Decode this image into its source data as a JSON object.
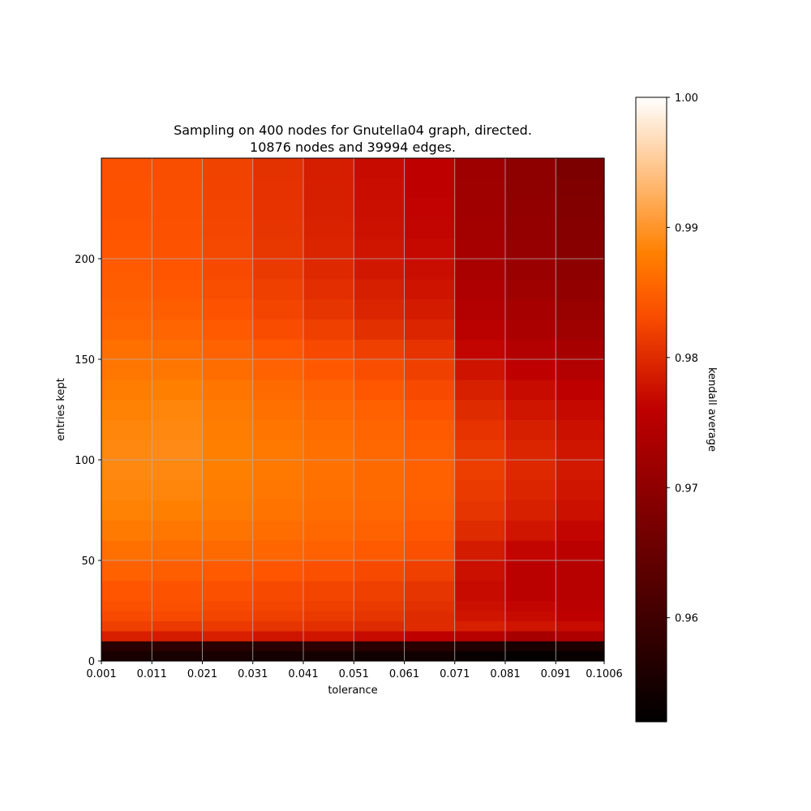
{
  "chart_data": {
    "type": "heatmap",
    "title_lines": [
      "Sampling on 400 nodes for Gnutella04 graph, directed.",
      "10876 nodes and 39994 edges."
    ],
    "xlabel": "tolerance",
    "ylabel": "entries kept",
    "xlim": [
      0.001,
      0.1006
    ],
    "ylim": [
      0,
      250
    ],
    "x_ticks": [
      0.001,
      0.011,
      0.021,
      0.031,
      0.041,
      0.051,
      0.061,
      0.071,
      0.081,
      0.091,
      0.1006
    ],
    "x_tick_labels": [
      "0.001",
      "0.011",
      "0.021",
      "0.031",
      "0.041",
      "0.051",
      "0.061",
      "0.071",
      "0.081",
      "0.091",
      "0.1006"
    ],
    "y_ticks": [
      0,
      50,
      100,
      150,
      200
    ],
    "y_tick_labels": [
      "0",
      "50",
      "100",
      "150",
      "200"
    ],
    "grid": true,
    "colormap": "gist_heat",
    "colorbar": {
      "label": "kendall average",
      "range": [
        0.952,
        1.0
      ],
      "ticks": [
        0.96,
        0.97,
        0.98,
        0.99,
        1.0
      ],
      "tick_labels": [
        "0.96",
        "0.97",
        "0.98",
        "0.99",
        "1.00"
      ]
    },
    "x_cells": [
      0.001,
      0.011,
      0.021,
      0.031,
      0.041,
      0.051,
      0.061,
      0.071,
      0.081,
      0.091
    ],
    "y_cells": [
      0,
      5,
      10,
      15,
      20,
      25,
      30,
      40,
      50,
      60,
      70,
      80,
      90,
      100,
      110,
      120,
      130,
      140,
      150,
      160,
      170,
      180,
      190,
      200,
      210,
      220,
      230,
      240
    ],
    "cell_height": [
      5,
      5,
      5,
      5,
      5,
      5,
      10,
      10,
      10,
      10,
      10,
      10,
      10,
      10,
      10,
      10,
      10,
      10,
      10,
      10,
      10,
      10,
      10,
      10,
      10,
      10,
      10,
      10
    ],
    "values": [
      [
        0.955,
        0.955,
        0.955,
        0.9545,
        0.9545,
        0.954,
        0.954,
        0.953,
        0.9525,
        0.953
      ],
      [
        0.957,
        0.9575,
        0.957,
        0.957,
        0.9575,
        0.957,
        0.957,
        0.956,
        0.955,
        0.9555
      ],
      [
        0.979,
        0.9785,
        0.979,
        0.978,
        0.978,
        0.977,
        0.976,
        0.975,
        0.973,
        0.974
      ],
      [
        0.982,
        0.9815,
        0.9815,
        0.981,
        0.9805,
        0.98,
        0.98,
        0.979,
        0.978,
        0.977
      ],
      [
        0.983,
        0.983,
        0.9825,
        0.982,
        0.9815,
        0.981,
        0.98,
        0.978,
        0.977,
        0.976
      ],
      [
        0.9835,
        0.9835,
        0.983,
        0.9825,
        0.982,
        0.9815,
        0.9805,
        0.9775,
        0.9765,
        0.9755
      ],
      [
        0.984,
        0.9838,
        0.9835,
        0.983,
        0.9825,
        0.982,
        0.981,
        0.977,
        0.9755,
        0.975
      ],
      [
        0.985,
        0.9848,
        0.9845,
        0.984,
        0.9835,
        0.983,
        0.982,
        0.9775,
        0.9755,
        0.975
      ],
      [
        0.9865,
        0.9862,
        0.986,
        0.9855,
        0.985,
        0.9845,
        0.9835,
        0.9785,
        0.9765,
        0.9755
      ],
      [
        0.9875,
        0.9872,
        0.9868,
        0.9862,
        0.9858,
        0.9852,
        0.9842,
        0.98,
        0.978,
        0.9765
      ],
      [
        0.9882,
        0.988,
        0.9875,
        0.9868,
        0.9862,
        0.9858,
        0.9848,
        0.981,
        0.979,
        0.9775
      ],
      [
        0.9885,
        0.9885,
        0.9878,
        0.9872,
        0.9865,
        0.986,
        0.985,
        0.9815,
        0.9795,
        0.978
      ],
      [
        0.9888,
        0.9888,
        0.988,
        0.9873,
        0.9866,
        0.986,
        0.985,
        0.9818,
        0.9798,
        0.9783
      ],
      [
        0.9888,
        0.989,
        0.988,
        0.9873,
        0.9865,
        0.9858,
        0.9848,
        0.9815,
        0.9795,
        0.978
      ],
      [
        0.9885,
        0.9888,
        0.9878,
        0.987,
        0.9862,
        0.9855,
        0.9845,
        0.9808,
        0.9788,
        0.9775
      ],
      [
        0.9882,
        0.9885,
        0.9875,
        0.9865,
        0.9858,
        0.985,
        0.9838,
        0.98,
        0.978,
        0.9768
      ],
      [
        0.9878,
        0.988,
        0.987,
        0.986,
        0.9852,
        0.9842,
        0.983,
        0.979,
        0.977,
        0.9758
      ],
      [
        0.9872,
        0.9872,
        0.9862,
        0.9852,
        0.9843,
        0.9833,
        0.982,
        0.9778,
        0.9758,
        0.9745
      ],
      [
        0.9865,
        0.9862,
        0.9852,
        0.9842,
        0.983,
        0.982,
        0.9808,
        0.9765,
        0.9745,
        0.973
      ],
      [
        0.9858,
        0.9855,
        0.9845,
        0.9832,
        0.982,
        0.9805,
        0.9795,
        0.9755,
        0.9735,
        0.972
      ],
      [
        0.9852,
        0.9848,
        0.9838,
        0.9825,
        0.981,
        0.9795,
        0.9785,
        0.9745,
        0.9728,
        0.9712
      ],
      [
        0.9848,
        0.9843,
        0.9833,
        0.982,
        0.9803,
        0.9788,
        0.9778,
        0.9738,
        0.972,
        0.9705
      ],
      [
        0.9845,
        0.984,
        0.983,
        0.9815,
        0.9798,
        0.9782,
        0.9772,
        0.9732,
        0.9715,
        0.9698
      ],
      [
        0.9842,
        0.9838,
        0.9828,
        0.9812,
        0.9795,
        0.978,
        0.9768,
        0.9728,
        0.971,
        0.9692
      ],
      [
        0.984,
        0.9836,
        0.9826,
        0.981,
        0.9792,
        0.9776,
        0.9765,
        0.9725,
        0.9706,
        0.9688
      ],
      [
        0.9838,
        0.9835,
        0.9825,
        0.9808,
        0.979,
        0.9774,
        0.9762,
        0.9722,
        0.9703,
        0.9684
      ],
      [
        0.9837,
        0.9834,
        0.9824,
        0.9807,
        0.9788,
        0.9772,
        0.976,
        0.972,
        0.97,
        0.968
      ],
      [
        0.9836,
        0.9833,
        0.9823,
        0.9806,
        0.9787,
        0.977,
        0.9758,
        0.9718,
        0.9698,
        0.9677
      ]
    ]
  }
}
